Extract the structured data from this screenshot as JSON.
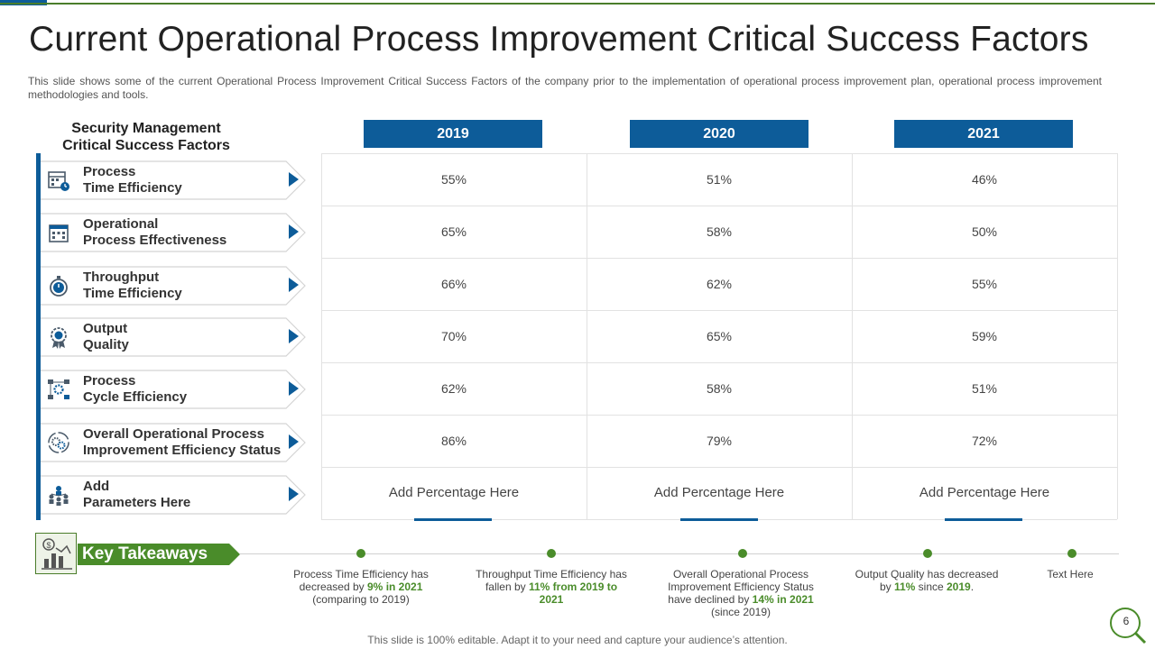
{
  "title": "Current Operational Process Improvement Critical Success Factors",
  "description": "This slide shows some of the current Operational Process Improvement  Critical Success Factors of the company prior to the implementation of operational process improvement  plan, operational process improvement  methodologies  and tools.",
  "left_header": {
    "line1": "Security Management",
    "line2": "Critical Success  Factors"
  },
  "years": [
    "2019",
    "2020",
    "2021"
  ],
  "rows": [
    {
      "icon": "calendar-clock-icon",
      "line1": "Process",
      "line2": "Time Efficiency",
      "values": [
        "55%",
        "51%",
        "46%"
      ]
    },
    {
      "icon": "building-icon",
      "line1": "Operational",
      "line2": "Process Effectiveness",
      "values": [
        "65%",
        "58%",
        "50%"
      ]
    },
    {
      "icon": "stopwatch-icon",
      "line1": "Throughput",
      "line2": "Time Efficiency",
      "values": [
        "66%",
        "62%",
        "55%"
      ]
    },
    {
      "icon": "award-badge-icon",
      "line1": "Output",
      "line2": "Quality",
      "values": [
        "70%",
        "65%",
        "59%"
      ]
    },
    {
      "icon": "process-gear-icon",
      "line1": "Process",
      "line2": "Cycle Efficiency",
      "values": [
        "62%",
        "58%",
        "51%"
      ]
    },
    {
      "icon": "gears-cycle-icon",
      "line1": "Overall Operational Process",
      "line2": "Improvement Efficiency Status",
      "values": [
        "86%",
        "79%",
        "72%"
      ]
    },
    {
      "icon": "team-network-icon",
      "line1": "Add",
      "line2": "Parameters Here",
      "values": [
        "Add Percentage Here",
        "Add Percentage Here",
        "Add Percentage Here"
      ]
    }
  ],
  "key_takeaways": {
    "label": "Key Takeaways",
    "icon": "money-chart-icon",
    "items": [
      {
        "parts": [
          {
            "text": "Process Time Efficiency has decreased by "
          },
          {
            "text": "9%",
            "strong": true
          },
          {
            "text": " "
          },
          {
            "text": "in 2021",
            "strong": true
          },
          {
            "text": " (comparing to 2019)"
          }
        ]
      },
      {
        "parts": [
          {
            "text": "Throughput Time Efficiency has fallen by "
          },
          {
            "text": "11% from 2019 to 2021",
            "strong": true
          }
        ]
      },
      {
        "parts": [
          {
            "text": "Overall Operational Process Improvement Efficiency Status have declined by "
          },
          {
            "text": "14% in 2021",
            "strong": true
          },
          {
            "text": " (since 2019)"
          }
        ]
      },
      {
        "parts": [
          {
            "text": "Output Quality has decreased by "
          },
          {
            "text": "11%",
            "strong": true
          },
          {
            "text": " since "
          },
          {
            "text": "2019",
            "strong": true
          },
          {
            "text": "."
          }
        ]
      },
      {
        "parts": [
          {
            "text": "Text Here"
          }
        ]
      }
    ]
  },
  "footer": "This slide is 100% editable. Adapt it to your need and capture your audience’s attention.",
  "page_number": "6",
  "colors": {
    "blue": "#0d5c99",
    "green": "#4a8c2a",
    "dark_green": "#4a7d2a"
  }
}
